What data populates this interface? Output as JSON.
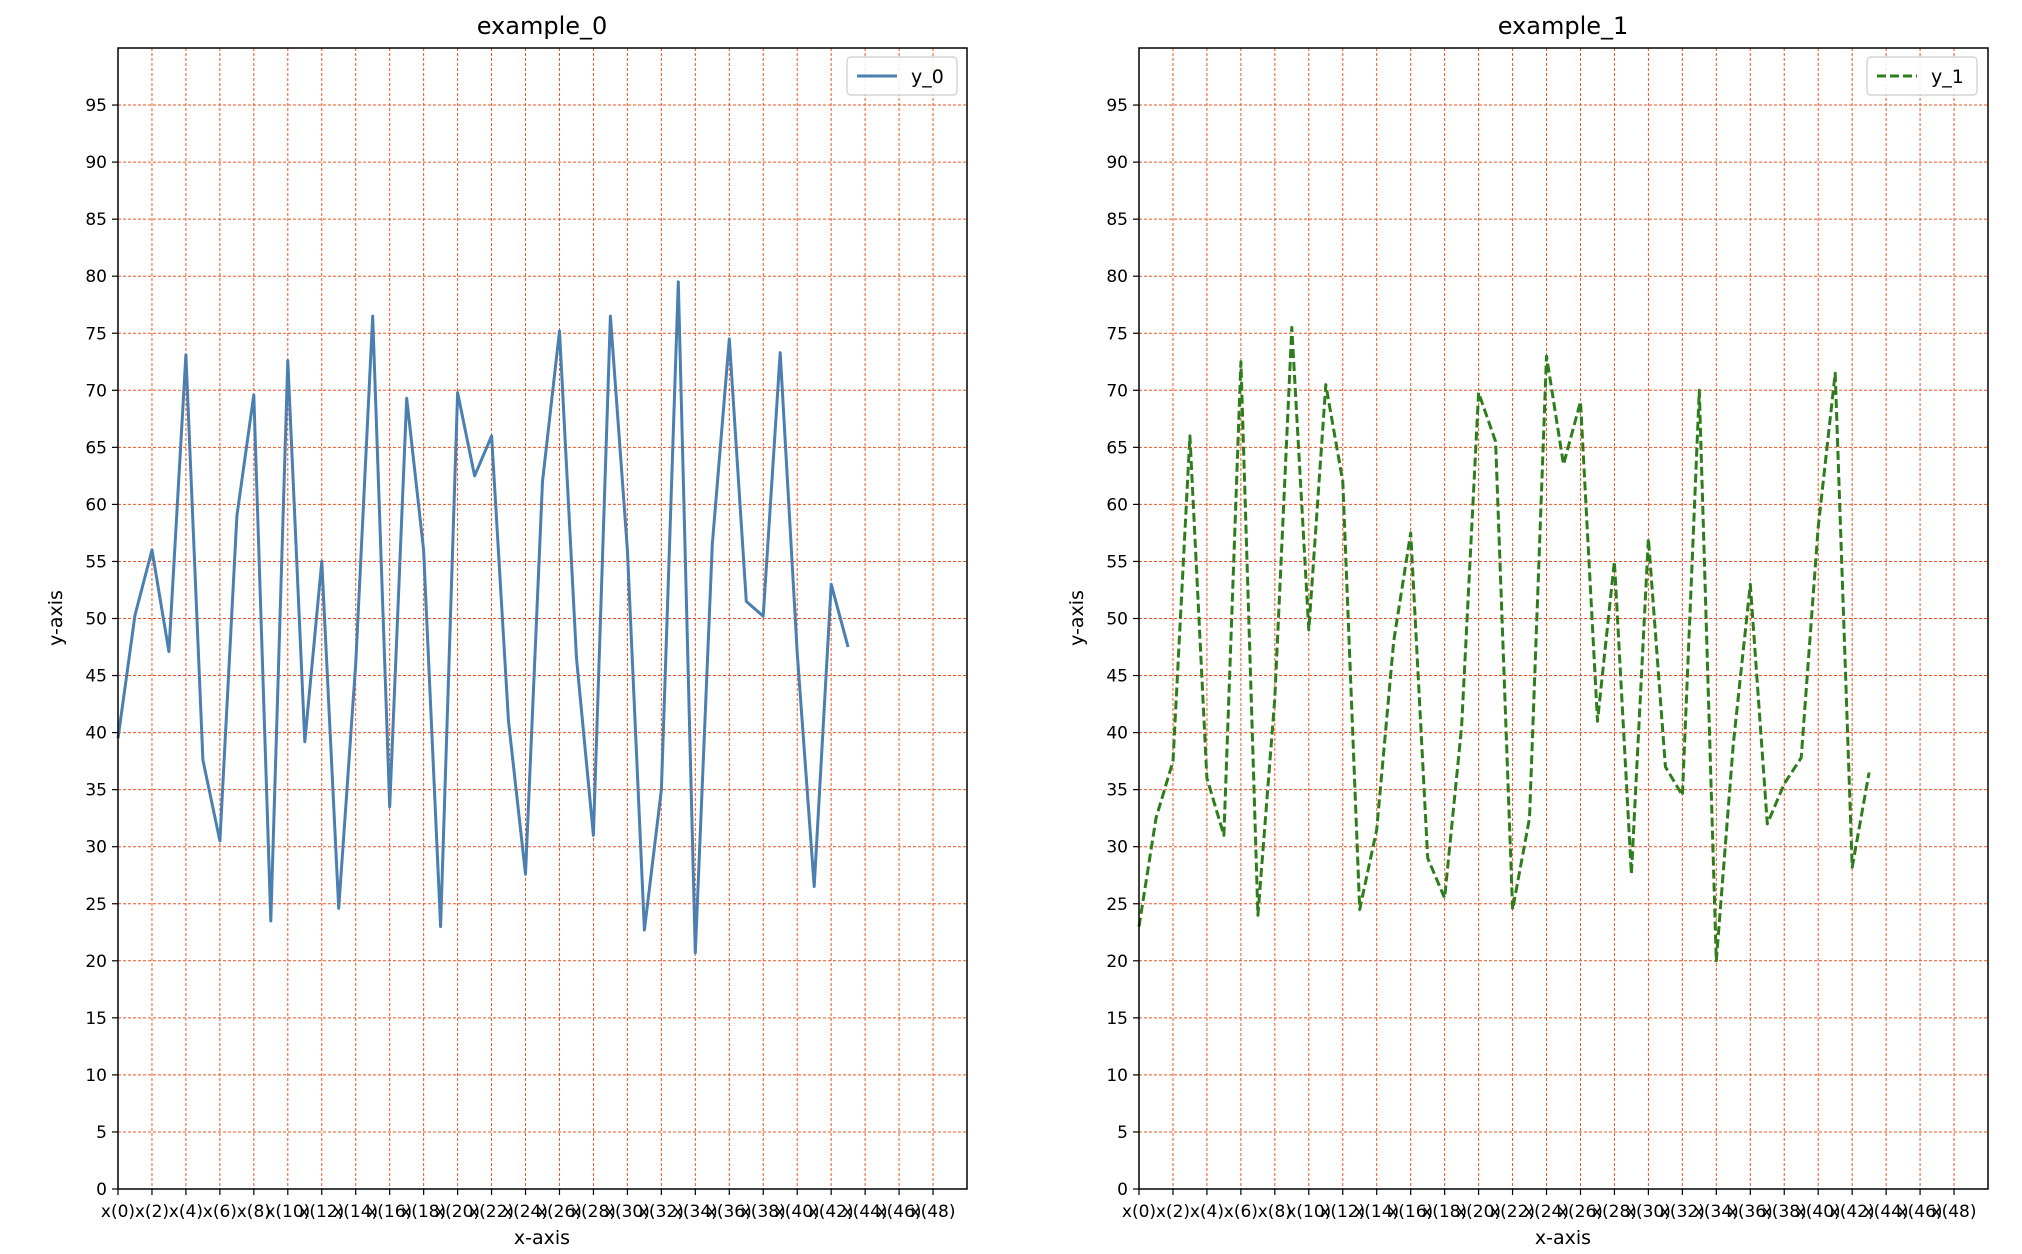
{
  "chart_data": [
    {
      "type": "line",
      "title": "example_0",
      "xlabel": "x-axis",
      "ylabel": "y-axis",
      "x_tick_labels": [
        "x(0)",
        "x(2)",
        "x(4)",
        "x(6)",
        "x(8)",
        "x(10)",
        "x(12)",
        "x(14)",
        "x(16)",
        "x(18)",
        "x(20)",
        "x(22)",
        "x(24)",
        "x(26)",
        "x(28)",
        "x(30)",
        "x(32)",
        "x(34)",
        "x(36)",
        "x(38)",
        "x(40)",
        "x(42)",
        "x(44)",
        "x(46)",
        "x(48)"
      ],
      "xlim": [
        0,
        50
      ],
      "ylim": [
        0,
        100
      ],
      "y_ticks": [
        0,
        5,
        10,
        15,
        20,
        25,
        30,
        35,
        40,
        45,
        50,
        55,
        60,
        65,
        70,
        75,
        80,
        85,
        90,
        95
      ],
      "grid": true,
      "grid_color": "#ee5522",
      "legend_position": "top-right",
      "series": [
        {
          "name": "y_0",
          "color": "#4a7fb0",
          "dash": "solid",
          "values": [
            39.5,
            50.3,
            56.0,
            47.1,
            73.1,
            37.6,
            30.5,
            59.0,
            69.6,
            23.5,
            72.6,
            39.2,
            55.0,
            24.6,
            46.0,
            76.5,
            33.5,
            69.3,
            56.0,
            23.0,
            69.8,
            62.5,
            66.0,
            41.0,
            27.6,
            62.0,
            75.2,
            46.5,
            31.0,
            76.5,
            56.0,
            22.7,
            35.0,
            79.5,
            20.7,
            56.5,
            74.5,
            51.5,
            50.2,
            73.3,
            47.0,
            26.5,
            53.0,
            47.5
          ]
        }
      ]
    },
    {
      "type": "line",
      "title": "example_1",
      "xlabel": "x-axis",
      "ylabel": "y-axis",
      "x_tick_labels": [
        "x(0)",
        "x(2)",
        "x(4)",
        "x(6)",
        "x(8)",
        "x(10)",
        "x(12)",
        "x(14)",
        "x(16)",
        "x(18)",
        "x(20)",
        "x(22)",
        "x(24)",
        "x(26)",
        "x(28)",
        "x(30)",
        "x(32)",
        "x(34)",
        "x(36)",
        "x(38)",
        "x(40)",
        "x(42)",
        "x(44)",
        "x(46)",
        "x(48)"
      ],
      "xlim": [
        0,
        50
      ],
      "ylim": [
        0,
        100
      ],
      "y_ticks": [
        0,
        5,
        10,
        15,
        20,
        25,
        30,
        35,
        40,
        45,
        50,
        55,
        60,
        65,
        70,
        75,
        80,
        85,
        90,
        95
      ],
      "grid": true,
      "grid_color": "#ee5522",
      "legend_position": "top-right",
      "series": [
        {
          "name": "y_1",
          "color": "#2e7d1c",
          "dash": "dashed",
          "values": [
            23.0,
            32.5,
            37.5,
            66.0,
            36.0,
            31.0,
            72.5,
            24.0,
            43.0,
            75.5,
            49.0,
            70.5,
            62.0,
            24.5,
            31.5,
            48.0,
            57.5,
            29.0,
            25.5,
            40.5,
            69.8,
            65.5,
            24.5,
            32.5,
            73.0,
            63.5,
            69.0,
            41.0,
            55.0,
            27.6,
            57.0,
            37.0,
            34.5,
            70.0,
            20.0,
            39.0,
            53.0,
            32.0,
            35.5,
            37.8,
            58.0,
            71.5,
            28.2,
            36.5
          ]
        }
      ]
    }
  ]
}
